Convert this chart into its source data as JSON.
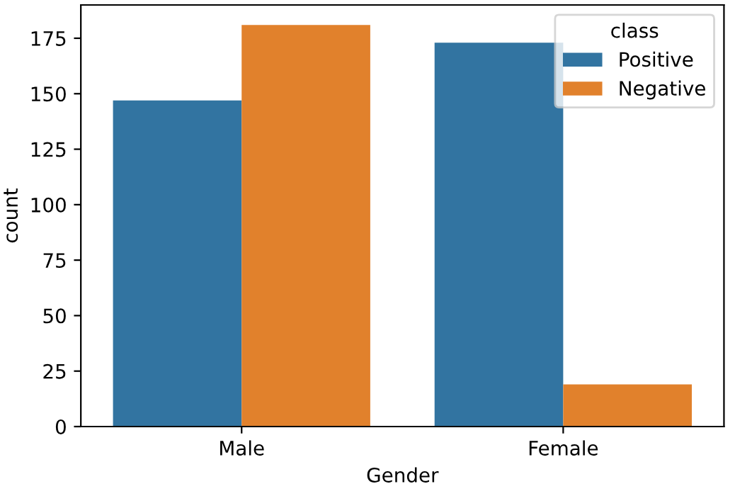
{
  "chart_data": {
    "type": "bar",
    "xlabel": "Gender",
    "ylabel": "count",
    "legend_title": "class",
    "categories": [
      "Male",
      "Female"
    ],
    "series": [
      {
        "name": "Positive",
        "color": "#3274a1",
        "values": [
          147,
          173
        ]
      },
      {
        "name": "Negative",
        "color": "#e1812c",
        "values": [
          181,
          19
        ]
      }
    ],
    "ylim": [
      0,
      190
    ],
    "yticks": [
      0,
      25,
      50,
      75,
      100,
      125,
      150,
      175
    ],
    "grid": false,
    "legend": "top right"
  }
}
